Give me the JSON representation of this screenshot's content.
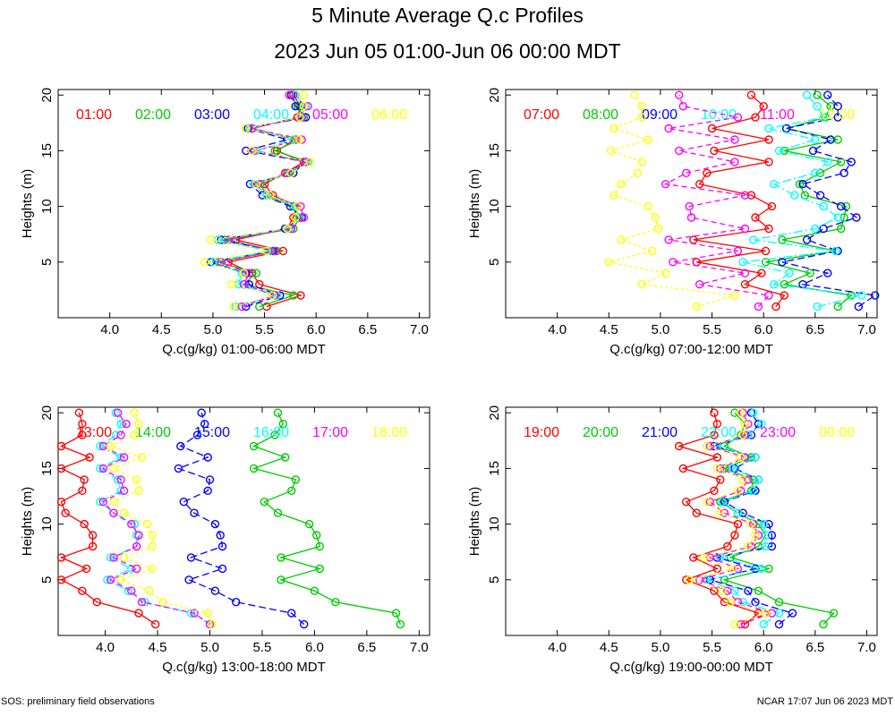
{
  "title": "5 Minute Average Q.c Profiles",
  "subtitle": "2023 Jun 05 01:00-Jun 06 00:00 MDT",
  "footer_left": "SOS: preliminary field observations",
  "footer_right": "NCAR 17:07 Jun 06 2023 MDT",
  "series_colors": [
    "#ff0000",
    "#00cc00",
    "#0000ff",
    "#00ffff",
    "#ff00ff",
    "#ffff00"
  ],
  "chart_data": [
    {
      "type": "line",
      "xlabel": "Q.c(g/kg) 01:00-06:00 MDT",
      "ylabel": "Heights (m)",
      "xlim": [
        3.5,
        7.1
      ],
      "ylim": [
        0,
        20.5
      ],
      "xticks": [
        "4.0",
        "4.5",
        "5.0",
        "5.5",
        "6.0",
        "6.5",
        "7.0"
      ],
      "yticks": [
        "5",
        "10",
        "15",
        "20"
      ],
      "heights": [
        1,
        2,
        3,
        4,
        5,
        6,
        7,
        8,
        9,
        10,
        11,
        12,
        13,
        14,
        15,
        16,
        17,
        18,
        19,
        20
      ],
      "series": [
        {
          "name": "01:00",
          "values": [
            5.52,
            5.85,
            5.45,
            5.38,
            5.15,
            5.68,
            5.22,
            5.72,
            5.78,
            5.82,
            5.58,
            5.5,
            5.7,
            5.88,
            5.62,
            5.8,
            5.38,
            5.82,
            5.85,
            5.78
          ]
        },
        {
          "name": "02:00",
          "values": [
            5.45,
            5.78,
            5.3,
            5.42,
            5.05,
            5.62,
            5.12,
            5.78,
            5.84,
            5.78,
            5.52,
            5.46,
            5.74,
            5.92,
            5.6,
            5.84,
            5.32,
            5.88,
            5.82,
            5.76
          ]
        },
        {
          "name": "03:00",
          "values": [
            5.32,
            5.65,
            5.35,
            5.32,
            4.98,
            5.58,
            5.08,
            5.7,
            5.86,
            5.75,
            5.48,
            5.36,
            5.78,
            5.9,
            5.32,
            5.72,
            5.34,
            5.9,
            5.8,
            5.76
          ]
        },
        {
          "name": "04:00",
          "values": [
            5.22,
            5.62,
            5.25,
            5.28,
            5.0,
            5.55,
            5.05,
            5.74,
            5.83,
            5.8,
            5.52,
            5.4,
            5.75,
            5.92,
            5.42,
            5.78,
            5.36,
            5.85,
            5.9,
            5.8
          ]
        },
        {
          "name": "05:00",
          "values": [
            5.28,
            5.6,
            5.3,
            5.35,
            5.08,
            5.6,
            5.15,
            5.76,
            5.88,
            5.85,
            5.55,
            5.44,
            5.72,
            5.9,
            5.4,
            5.86,
            5.38,
            5.86,
            5.92,
            5.74
          ]
        },
        {
          "name": "06:00",
          "values": [
            5.2,
            5.58,
            5.18,
            5.3,
            4.92,
            5.52,
            4.98,
            5.72,
            5.8,
            5.82,
            5.55,
            5.42,
            5.76,
            5.94,
            5.38,
            5.84,
            5.32,
            5.84,
            5.88,
            5.88
          ]
        }
      ]
    },
    {
      "type": "line",
      "xlabel": "Q.c(g/kg) 07:00-12:00 MDT",
      "ylabel": "Heights (m)",
      "xlim": [
        3.5,
        7.1
      ],
      "ylim": [
        0,
        20.5
      ],
      "xticks": [
        "4.0",
        "4.5",
        "5.0",
        "5.5",
        "6.0",
        "6.5",
        "7.0"
      ],
      "yticks": [
        "5",
        "10",
        "15",
        "20"
      ],
      "heights": [
        1,
        2,
        3,
        4,
        5,
        6,
        7,
        8,
        9,
        10,
        11,
        12,
        13,
        14,
        15,
        16,
        17,
        18,
        19,
        20
      ],
      "series": [
        {
          "name": "07:00",
          "values": [
            6.12,
            6.2,
            5.82,
            5.98,
            5.35,
            6.02,
            5.32,
            6.05,
            5.92,
            6.08,
            5.88,
            5.38,
            5.45,
            6.05,
            5.52,
            6.05,
            5.5,
            5.92,
            6.0,
            5.88
          ]
        },
        {
          "name": "08:00",
          "values": [
            6.72,
            6.85,
            6.2,
            6.45,
            6.02,
            6.7,
            6.18,
            6.75,
            6.78,
            6.8,
            6.4,
            6.35,
            6.55,
            6.75,
            6.2,
            6.72,
            6.22,
            6.6,
            6.65,
            6.52
          ]
        },
        {
          "name": "09:00",
          "values": [
            6.92,
            7.08,
            6.38,
            6.62,
            6.18,
            6.72,
            6.42,
            6.58,
            6.9,
            6.75,
            6.55,
            6.38,
            6.78,
            6.85,
            6.48,
            6.65,
            6.22,
            6.72,
            6.72,
            6.62
          ]
        },
        {
          "name": "10:00",
          "values": [
            6.52,
            6.95,
            6.1,
            6.25,
            5.8,
            6.7,
            5.9,
            6.5,
            6.72,
            6.58,
            6.3,
            6.1,
            6.5,
            6.62,
            6.15,
            6.5,
            6.05,
            6.58,
            6.52,
            6.42
          ]
        },
        {
          "name": "11:00",
          "values": [
            5.95,
            6.05,
            5.38,
            5.82,
            5.12,
            5.75,
            5.08,
            5.82,
            5.3,
            5.28,
            5.82,
            5.05,
            5.25,
            5.72,
            5.18,
            5.72,
            5.08,
            5.75,
            5.22,
            5.18
          ]
        },
        {
          "name": "12:00",
          "values": [
            5.35,
            5.72,
            4.82,
            5.05,
            4.5,
            4.92,
            4.62,
            4.98,
            4.95,
            4.88,
            4.55,
            4.62,
            4.78,
            4.82,
            4.52,
            4.88,
            4.55,
            4.82,
            4.82,
            4.75
          ]
        }
      ]
    },
    {
      "type": "line",
      "xlabel": "Q.c(g/kg) 13:00-18:00 MDT",
      "ylabel": "Heights (m)",
      "xlim": [
        3.55,
        7.1
      ],
      "ylim": [
        0,
        20.5
      ],
      "xticks": [
        "4.0",
        "4.5",
        "5.0",
        "5.5",
        "6.0",
        "6.5",
        "7.0"
      ],
      "yticks": [
        "5",
        "10",
        "15",
        "20"
      ],
      "heights": [
        1,
        2,
        3,
        4,
        5,
        6,
        7,
        8,
        9,
        10,
        11,
        12,
        13,
        14,
        15,
        16,
        17,
        18,
        19,
        20
      ],
      "series": [
        {
          "name": "13:00",
          "values": [
            4.48,
            4.32,
            3.92,
            3.78,
            3.58,
            3.82,
            3.58,
            3.88,
            3.88,
            3.8,
            3.62,
            3.58,
            3.78,
            3.8,
            3.58,
            3.85,
            3.58,
            3.78,
            3.78,
            3.75
          ]
        },
        {
          "name": "14:00",
          "values": [
            6.82,
            6.78,
            6.2,
            6.0,
            5.68,
            6.05,
            5.68,
            6.05,
            6.02,
            5.95,
            5.65,
            5.52,
            5.78,
            5.82,
            5.42,
            5.72,
            5.42,
            5.62,
            5.7,
            5.65
          ]
        },
        {
          "name": "15:00",
          "values": [
            5.9,
            5.78,
            5.25,
            5.05,
            4.8,
            5.12,
            4.82,
            5.12,
            5.1,
            5.05,
            4.85,
            4.75,
            4.98,
            5.0,
            4.7,
            4.98,
            4.72,
            4.88,
            4.95,
            4.92
          ]
        },
        {
          "name": "16:00",
          "values": [
            5.02,
            4.82,
            4.38,
            4.22,
            4.02,
            4.25,
            4.05,
            4.3,
            4.3,
            4.28,
            4.08,
            3.95,
            4.15,
            4.12,
            3.95,
            4.15,
            3.95,
            4.1,
            4.15,
            4.1
          ]
        },
        {
          "name": "17:00",
          "values": [
            5.0,
            4.85,
            4.35,
            4.25,
            4.05,
            4.3,
            4.08,
            4.3,
            4.32,
            4.25,
            4.08,
            3.98,
            4.18,
            4.15,
            3.98,
            4.18,
            3.98,
            4.15,
            4.2,
            4.12
          ]
        },
        {
          "name": "18:00",
          "values": [
            5.02,
            4.98,
            4.55,
            4.42,
            4.15,
            4.45,
            4.18,
            4.45,
            4.45,
            4.4,
            4.18,
            4.08,
            4.32,
            4.3,
            4.08,
            4.35,
            4.05,
            4.28,
            4.32,
            4.28
          ]
        }
      ]
    },
    {
      "type": "line",
      "xlabel": "Q.c(g/kg) 19:00-00:00 MDT",
      "ylabel": "Heights (m)",
      "xlim": [
        3.5,
        7.1
      ],
      "ylim": [
        0,
        20.5
      ],
      "xticks": [
        "4.0",
        "4.5",
        "5.0",
        "5.5",
        "6.0",
        "6.5",
        "7.0"
      ],
      "yticks": [
        "5",
        "10",
        "15",
        "20"
      ],
      "heights": [
        1,
        2,
        3,
        4,
        5,
        6,
        7,
        8,
        9,
        10,
        11,
        12,
        13,
        14,
        15,
        16,
        17,
        18,
        19,
        20
      ],
      "series": [
        {
          "name": "19:00",
          "values": [
            5.82,
            5.95,
            5.62,
            5.52,
            5.25,
            5.55,
            5.32,
            5.65,
            5.72,
            5.75,
            5.35,
            5.25,
            5.52,
            5.58,
            5.22,
            5.55,
            5.18,
            5.52,
            5.55,
            5.52
          ]
        },
        {
          "name": "20:00",
          "values": [
            6.58,
            6.68,
            6.15,
            5.95,
            5.62,
            6.05,
            5.68,
            5.95,
            6.02,
            5.95,
            5.75,
            5.58,
            5.88,
            5.9,
            5.62,
            5.88,
            5.62,
            5.78,
            5.82,
            5.72
          ]
        },
        {
          "name": "21:00",
          "values": [
            6.15,
            6.28,
            5.92,
            5.85,
            5.48,
            5.92,
            5.55,
            6.08,
            6.08,
            6.05,
            5.8,
            5.62,
            5.92,
            5.95,
            5.72,
            5.92,
            5.52,
            5.88,
            5.95,
            5.88
          ]
        },
        {
          "name": "22:00",
          "values": [
            6.0,
            6.15,
            5.8,
            5.72,
            5.45,
            5.98,
            5.58,
            6.02,
            6.02,
            6.0,
            5.75,
            5.6,
            5.9,
            5.95,
            5.7,
            5.92,
            5.55,
            5.85,
            5.98,
            5.9
          ]
        },
        {
          "name": "23:00",
          "values": [
            5.78,
            6.08,
            5.75,
            5.65,
            5.38,
            5.75,
            5.48,
            5.88,
            5.95,
            5.9,
            5.62,
            5.48,
            5.78,
            5.85,
            5.58,
            5.82,
            5.48,
            5.82,
            5.85,
            5.8
          ]
        },
        {
          "name": "00:00",
          "values": [
            5.72,
            6.02,
            5.68,
            5.6,
            5.28,
            5.7,
            5.42,
            5.85,
            5.92,
            5.88,
            5.58,
            5.45,
            5.75,
            5.8,
            5.55,
            5.78,
            5.45,
            5.8,
            5.82,
            5.78
          ]
        }
      ]
    }
  ]
}
